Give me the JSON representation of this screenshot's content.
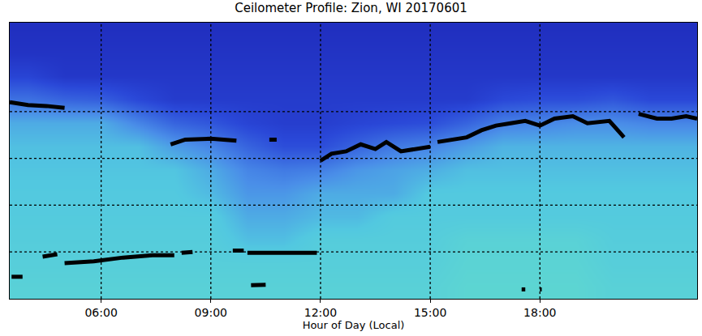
{
  "chart_data": {
    "type": "heatmap",
    "title": "Ceilometer Profile: Zion, WI 20170601",
    "x_label": "Hour of Day (Local)",
    "x": [
      4,
      5,
      6,
      7,
      8,
      9,
      10,
      11,
      12,
      13,
      14,
      15,
      16,
      17,
      18,
      19,
      20,
      21,
      22
    ],
    "y": [
      0.25,
      0.75,
      1.25,
      1.75,
      2.25,
      2.75,
      3.25,
      3.75,
      4.25,
      4.75,
      5.25,
      5.75
    ],
    "z": [
      [
        0.75,
        0.75,
        0.75,
        0.75,
        0.75,
        0.75,
        0.75,
        0.75,
        0.75,
        0.75,
        0.75,
        0.75,
        0.8,
        0.8,
        0.8,
        0.8,
        0.75,
        0.75,
        0.75
      ],
      [
        0.72,
        0.72,
        0.72,
        0.72,
        0.72,
        0.72,
        0.72,
        0.72,
        0.72,
        0.72,
        0.72,
        0.72,
        0.78,
        0.78,
        0.78,
        0.78,
        0.72,
        0.72,
        0.72
      ],
      [
        0.7,
        0.7,
        0.7,
        0.7,
        0.7,
        0.7,
        0.62,
        0.62,
        0.7,
        0.7,
        0.7,
        0.7,
        0.76,
        0.76,
        0.76,
        0.76,
        0.7,
        0.7,
        0.7
      ],
      [
        0.68,
        0.68,
        0.68,
        0.68,
        0.68,
        0.68,
        0.55,
        0.55,
        0.6,
        0.6,
        0.68,
        0.68,
        0.68,
        0.68,
        0.68,
        0.68,
        0.68,
        0.68,
        0.68
      ],
      [
        0.66,
        0.66,
        0.66,
        0.66,
        0.66,
        0.6,
        0.48,
        0.48,
        0.55,
        0.55,
        0.55,
        0.66,
        0.66,
        0.66,
        0.66,
        0.66,
        0.66,
        0.66,
        0.66
      ],
      [
        0.64,
        0.64,
        0.64,
        0.64,
        0.64,
        0.55,
        0.42,
        0.38,
        0.4,
        0.48,
        0.52,
        0.56,
        0.62,
        0.62,
        0.62,
        0.62,
        0.62,
        0.62,
        0.62
      ],
      [
        0.62,
        0.62,
        0.62,
        0.62,
        0.5,
        0.42,
        0.3,
        0.22,
        0.22,
        0.3,
        0.38,
        0.42,
        0.5,
        0.58,
        0.58,
        0.58,
        0.58,
        0.58,
        0.58
      ],
      [
        0.55,
        0.55,
        0.55,
        0.42,
        0.3,
        0.25,
        0.18,
        0.15,
        0.15,
        0.18,
        0.2,
        0.22,
        0.3,
        0.4,
        0.42,
        0.45,
        0.45,
        0.42,
        0.42
      ],
      [
        0.35,
        0.3,
        0.28,
        0.2,
        0.14,
        0.14,
        0.14,
        0.14,
        0.14,
        0.14,
        0.14,
        0.14,
        0.14,
        0.2,
        0.22,
        0.22,
        0.25,
        0.2,
        0.2
      ],
      [
        0.18,
        0.12,
        0.12,
        0.12,
        0.12,
        0.12,
        0.12,
        0.12,
        0.12,
        0.12,
        0.12,
        0.12,
        0.12,
        0.12,
        0.12,
        0.12,
        0.12,
        0.12,
        0.12
      ],
      [
        0.1,
        0.1,
        0.1,
        0.1,
        0.1,
        0.1,
        0.1,
        0.1,
        0.1,
        0.1,
        0.1,
        0.1,
        0.1,
        0.1,
        0.1,
        0.1,
        0.1,
        0.1,
        0.1
      ],
      [
        0.08,
        0.08,
        0.08,
        0.08,
        0.08,
        0.08,
        0.08,
        0.08,
        0.08,
        0.08,
        0.08,
        0.08,
        0.08,
        0.08,
        0.08,
        0.08,
        0.08,
        0.08,
        0.08
      ]
    ],
    "zlim": [
      0,
      1
    ],
    "xlim": [
      3.5,
      22.3
    ],
    "xticks": [
      {
        "value": 6,
        "label": "06:00"
      },
      {
        "value": 9,
        "label": "09:00"
      },
      {
        "value": 12,
        "label": "12:00"
      },
      {
        "value": 15,
        "label": "15:00"
      },
      {
        "value": 18,
        "label": "18:00"
      }
    ],
    "ylim": [
      0,
      5.9
    ],
    "yticks": [
      1,
      2,
      3,
      4
    ],
    "grid": true,
    "tick_labels": "x",
    "series": [
      {
        "type": "line",
        "color": "#000000",
        "line_style": "solid",
        "x": [
          3.5,
          4.0,
          4.5,
          5.0,
          null,
          7.9,
          8.3,
          9.0,
          9.7,
          null,
          10.6,
          10.8,
          null,
          12.0,
          12.3,
          12.7,
          13.1,
          13.5,
          13.8,
          14.2,
          14.6,
          15.0,
          null,
          15.2,
          15.6,
          16.0,
          16.4,
          16.8,
          17.2,
          17.6,
          18.0,
          18.4,
          18.9,
          19.3,
          19.9,
          20.3,
          null,
          20.7,
          21.2,
          21.6,
          22.0,
          22.3
        ],
        "y": [
          4.2,
          4.14,
          4.12,
          4.08,
          null,
          3.3,
          3.4,
          3.42,
          3.38,
          null,
          3.4,
          3.4,
          null,
          2.95,
          3.1,
          3.15,
          3.3,
          3.2,
          3.35,
          3.15,
          3.2,
          3.25,
          null,
          3.35,
          3.4,
          3.45,
          3.6,
          3.7,
          3.75,
          3.8,
          3.7,
          3.85,
          3.9,
          3.75,
          3.8,
          3.45,
          null,
          3.95,
          3.85,
          3.85,
          3.9,
          3.85
        ]
      },
      {
        "type": "line",
        "color": "#000000",
        "line_style": "solid",
        "x": [
          3.55,
          3.85,
          null,
          4.4,
          4.8,
          null,
          5.0,
          5.8,
          6.6,
          7.4,
          8.0,
          null,
          8.2,
          8.5,
          null,
          9.6,
          9.9,
          null,
          10.0,
          10.6,
          11.2,
          11.9,
          null,
          10.1,
          10.5,
          null,
          17.5,
          17.6,
          null,
          18.0,
          18.05
        ],
        "y": [
          0.47,
          0.47,
          null,
          0.9,
          0.95,
          null,
          0.76,
          0.8,
          0.88,
          0.93,
          0.93,
          null,
          0.98,
          1.0,
          null,
          1.03,
          1.03,
          null,
          0.98,
          0.98,
          0.97,
          0.98,
          null,
          0.29,
          0.3,
          null,
          0.2,
          0.2,
          null,
          0.2,
          0.2
        ]
      }
    ]
  }
}
